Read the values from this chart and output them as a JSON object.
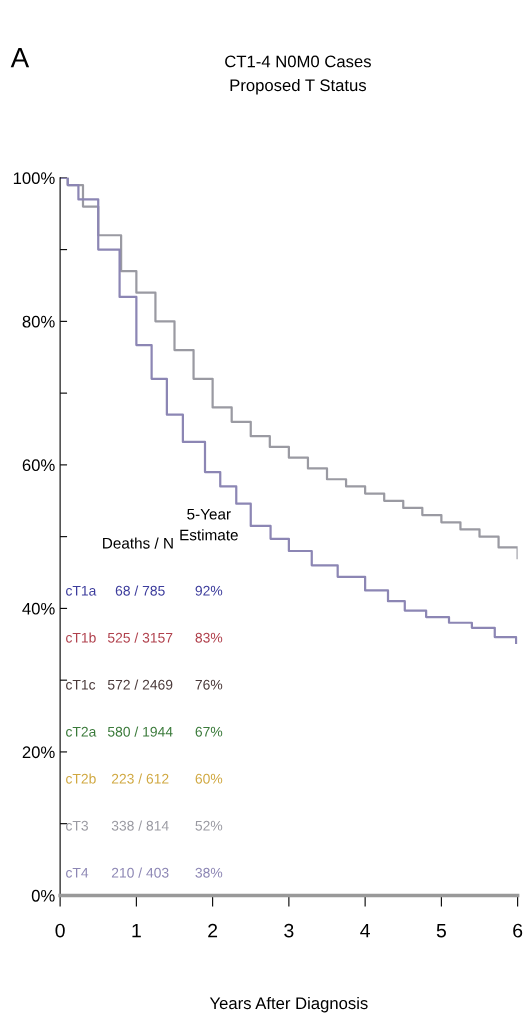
{
  "chart_data": {
    "type": "step",
    "title": "CT1-4 N0M0 Cases",
    "subtitle": "Proposed T Status",
    "xlabel": "Years After Diagnosis",
    "annotations": [
      "A",
      "Deaths / N",
      "5-Year\nEstimate",
      "68 / 785",
      "92%",
      "525 / 3157",
      "83%",
      "572 / 2469",
      "76%",
      "580 / 1944",
      "67%",
      "223 / 612",
      "60%",
      "338 / 814",
      "52%",
      "210 / 403",
      "38%"
    ],
    "series": [
      {
        "name": "cT1a",
        "color": "#3c3c9c"
      },
      {
        "name": "cT1b",
        "color": "#b0404c"
      },
      {
        "name": "cT1c",
        "color": "#4a3a3a"
      },
      {
        "name": "cT2a",
        "color": "#3a7a3a"
      },
      {
        "name": "cT2b",
        "color": "#d0a840"
      },
      {
        "name": "cT3",
        "color": "#9a9aa2",
        "x": [
          0,
          0.1,
          0.3,
          0.5,
          0.8,
          1,
          1.25,
          1.5,
          1.75,
          2,
          2.25,
          2.5,
          2.75,
          3,
          3.25,
          3.5,
          3.75,
          4,
          4.25,
          4.5,
          4.75,
          5,
          5.25,
          5.5,
          5.75,
          6
        ],
        "values": [
          100,
          99,
          96,
          92,
          87,
          84,
          80,
          76,
          72,
          68,
          66,
          64,
          62.5,
          61,
          59.5,
          58,
          57,
          56,
          55,
          54,
          53,
          52,
          51,
          50,
          48.5,
          47
        ]
      },
      {
        "name": "cT4",
        "color": "#8c86b4",
        "x": [
          0,
          0.1,
          0.24,
          0.5,
          0.78,
          1,
          1.2,
          1.4,
          1.61,
          1.9,
          2.1,
          2.31,
          2.5,
          2.76,
          3,
          3.3,
          3.64,
          4,
          4.3,
          4.52,
          4.8,
          5.1,
          5.4,
          5.7,
          5.98
        ],
        "values": [
          100,
          99,
          97,
          90,
          83.4,
          76.7,
          72,
          67,
          63.2,
          59,
          57,
          54.6,
          51.5,
          49.7,
          48,
          46,
          44.4,
          42.5,
          41,
          39.7,
          38.8,
          38,
          37.3,
          36,
          35.2
        ]
      }
    ],
    "xlim": [
      0,
      6
    ],
    "xticks": [
      0,
      1,
      2,
      3,
      4,
      5,
      6
    ],
    "ylim": [
      0,
      100
    ],
    "yticks": [
      {
        "value": 0,
        "label": "0%"
      },
      {
        "value": 10,
        "label": null
      },
      {
        "value": 20,
        "label": "20%"
      },
      {
        "value": 30,
        "label": null
      },
      {
        "value": 40,
        "label": "40%"
      },
      {
        "value": 50,
        "label": null
      },
      {
        "value": 60,
        "label": "60%"
      },
      {
        "value": 70,
        "label": null
      },
      {
        "value": 80,
        "label": "80%"
      },
      {
        "value": 90,
        "label": null
      },
      {
        "value": 100,
        "label": "100%"
      }
    ],
    "grid": false,
    "legend": false
  }
}
